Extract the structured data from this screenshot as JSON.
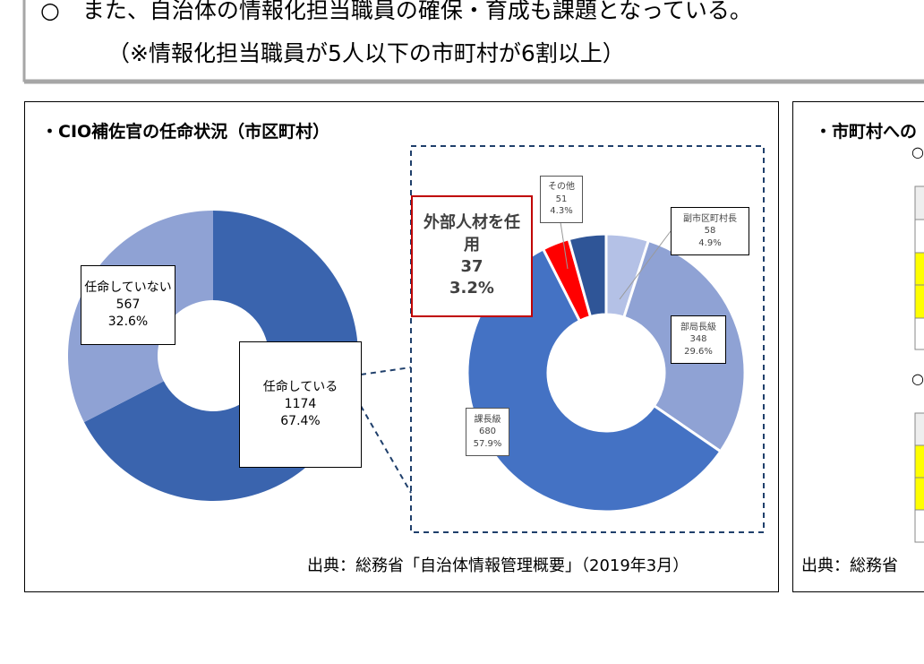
{
  "header": {
    "line1": "○　また、自治体の情報化担当職員の確保・育成も課題となっている。",
    "line2": "（※情報化担当職員が5人以下の市町村が6割以上）"
  },
  "left_panel": {
    "title": "・CIO補佐官の任命状況（市区町村）",
    "source": "出典：総務省「自治体情報管理概要」（2019年3月）"
  },
  "right_panel": {
    "title": "・市町村への",
    "bullet1": "○",
    "bullet2": "○",
    "source": "出典：総務省"
  },
  "chart_data": [
    {
      "type": "donut",
      "categories": [
        "任命している",
        "任命していない"
      ],
      "values": [
        1174,
        567
      ],
      "percent_labels": [
        "67.4%",
        "32.6%"
      ],
      "colors": [
        "#3a64ae",
        "#8fa2d4"
      ]
    },
    {
      "type": "donut",
      "categories": [
        "副市区町村長",
        "部局長級",
        "課長級",
        "外部人材を任用",
        "その他"
      ],
      "values": [
        58,
        348,
        680,
        37,
        51
      ],
      "percent_labels": [
        "4.9%",
        "29.6%",
        "57.9%",
        "3.2%",
        "4.3%"
      ],
      "colors": [
        "#b4c1e6",
        "#8fa2d4",
        "#4472c4",
        "#ff0000",
        "#2f5597"
      ]
    }
  ]
}
